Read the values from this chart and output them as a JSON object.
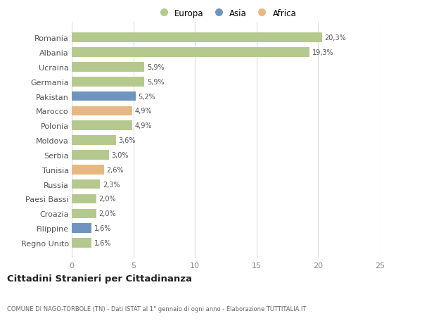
{
  "categories": [
    "Romania",
    "Albania",
    "Ucraina",
    "Germania",
    "Pakistan",
    "Marocco",
    "Polonia",
    "Moldova",
    "Serbia",
    "Tunisia",
    "Russia",
    "Paesi Bassi",
    "Croazia",
    "Filippine",
    "Regno Unito"
  ],
  "values": [
    20.3,
    19.3,
    5.9,
    5.9,
    5.2,
    4.9,
    4.9,
    3.6,
    3.0,
    2.6,
    2.3,
    2.0,
    2.0,
    1.6,
    1.6
  ],
  "labels": [
    "20,3%",
    "19,3%",
    "5,9%",
    "5,9%",
    "5,2%",
    "4,9%",
    "4,9%",
    "3,6%",
    "3,0%",
    "2,6%",
    "2,3%",
    "2,0%",
    "2,0%",
    "1,6%",
    "1,6%"
  ],
  "continent": [
    "Europa",
    "Europa",
    "Europa",
    "Europa",
    "Asia",
    "Africa",
    "Europa",
    "Europa",
    "Europa",
    "Africa",
    "Europa",
    "Europa",
    "Europa",
    "Asia",
    "Europa"
  ],
  "colors": {
    "Europa": "#b5c98e",
    "Asia": "#7094c0",
    "Africa": "#e8b882"
  },
  "title": "Cittadini Stranieri per Cittadinanza",
  "subtitle": "COMUNE DI NAGO-TORBOLE (TN) - Dati ISTAT al 1° gennaio di ogni anno - Elaborazione TUTTITALIA.IT",
  "xlim": [
    0,
    25
  ],
  "xticks": [
    0,
    5,
    10,
    15,
    20,
    25
  ],
  "bg_color": "#ffffff",
  "grid_color": "#dddddd"
}
